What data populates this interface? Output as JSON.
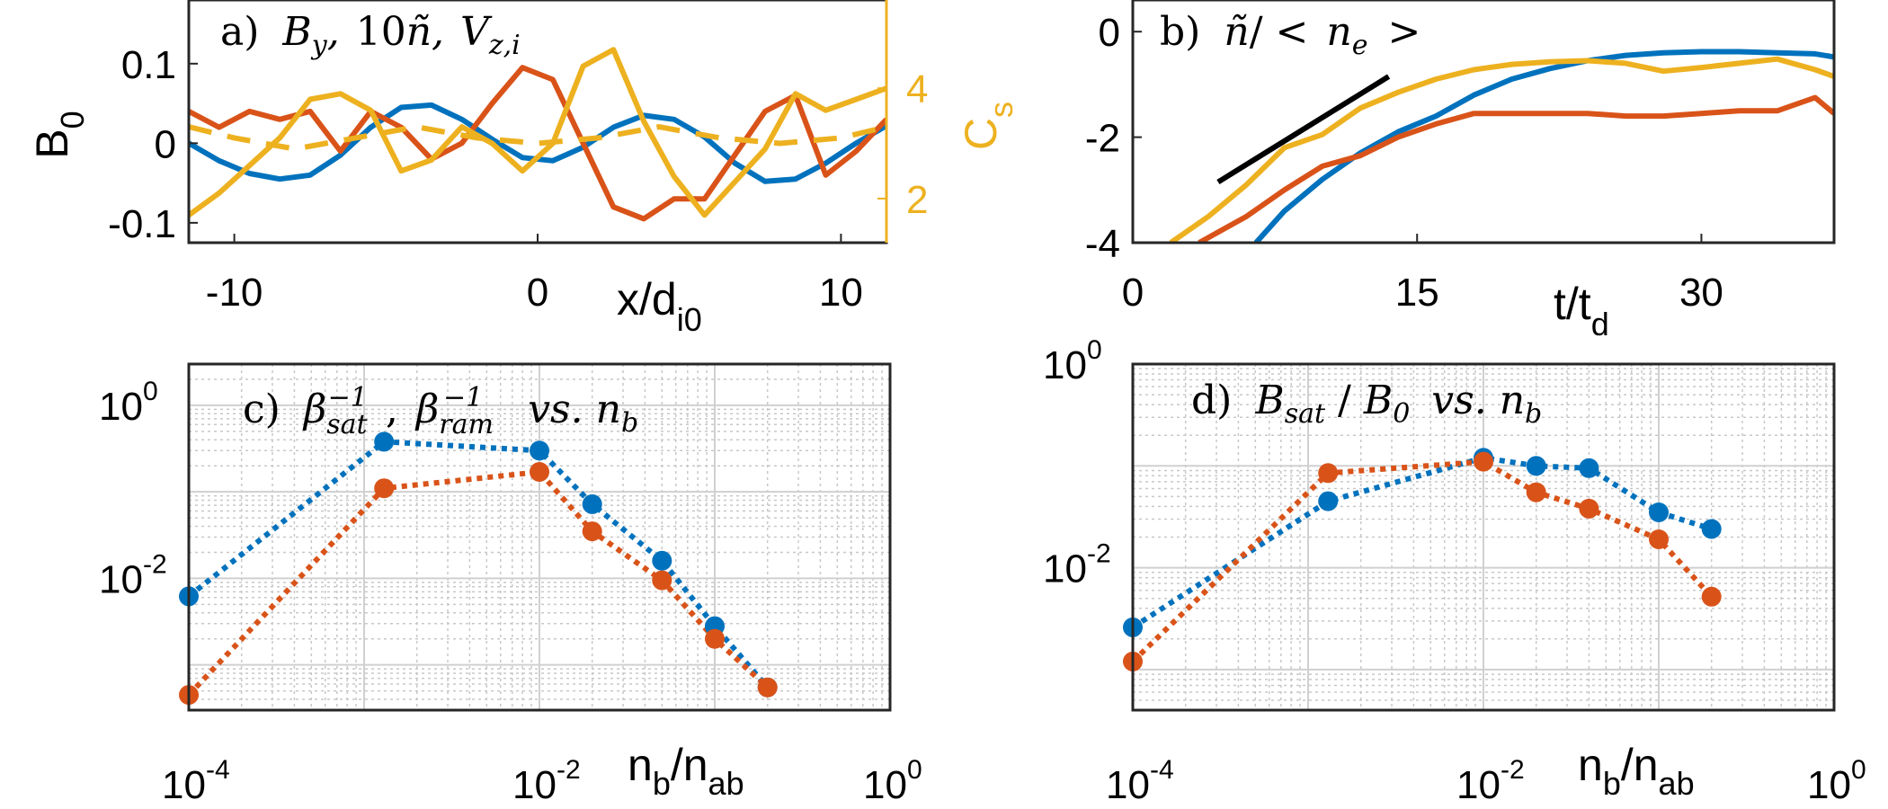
{
  "figure": {
    "colors": {
      "blue": "#0072bd",
      "orange": "#d95319",
      "yellow": "#edb120",
      "black": "#000000"
    }
  },
  "chart_data": [
    {
      "panel": "a",
      "type": "line",
      "title_tokens": [
        "a)",
        "B",
        "y",
        ",",
        "10",
        "ñ",
        ",",
        "V",
        "z,i"
      ],
      "xlabel_main": "x/d",
      "xlabel_sub": "i0",
      "ylabel_main": "B",
      "ylabel_sub": "0",
      "ylabel_right_main": "C",
      "ylabel_right_sub": "s",
      "xlim": [
        -11.5,
        11.5
      ],
      "ylim": [
        -0.125,
        0.18
      ],
      "y2lim": [
        1.2,
        5.6
      ],
      "xticks": [
        -10,
        0,
        10
      ],
      "xtick_labels": [
        "-10",
        "0",
        "10"
      ],
      "yticks": [
        -0.1,
        0,
        0.1
      ],
      "ytick_labels": [
        "-0.1",
        "0",
        "0.1"
      ],
      "y2ticks": [
        2,
        4
      ],
      "y2tick_labels": [
        "2",
        "4"
      ],
      "series": [
        {
          "color": "blue",
          "style": "solid",
          "x": [
            -11.5,
            -10.5,
            -9.5,
            -8.5,
            -7.5,
            -6.5,
            -5.5,
            -4.5,
            -3.5,
            -2.5,
            -1.5,
            -0.5,
            0.5,
            1.5,
            2.5,
            3.5,
            4.5,
            5.5,
            6.5,
            7.5,
            8.5,
            9.5,
            10.5,
            11.5
          ],
          "y": [
            0.0,
            -0.022,
            -0.038,
            -0.045,
            -0.04,
            -0.015,
            0.02,
            0.045,
            0.048,
            0.03,
            0.005,
            -0.018,
            -0.022,
            -0.005,
            0.02,
            0.035,
            0.03,
            0.008,
            -0.025,
            -0.048,
            -0.045,
            -0.025,
            0.0,
            0.022
          ]
        },
        {
          "color": "orange",
          "style": "solid",
          "x": [
            -11.5,
            -10.5,
            -9.5,
            -8.5,
            -7.5,
            -6.5,
            -5.5,
            -4.5,
            -3.5,
            -2.5,
            -1.5,
            -0.5,
            0.5,
            1.5,
            2.5,
            3.5,
            4.5,
            5.5,
            6.5,
            7.5,
            8.5,
            9.5,
            10.5,
            11.5
          ],
          "y": [
            0.04,
            0.02,
            0.04,
            0.03,
            0.04,
            -0.01,
            0.04,
            0.02,
            -0.02,
            0.0,
            0.05,
            0.095,
            0.08,
            0.0,
            -0.08,
            -0.095,
            -0.07,
            -0.07,
            -0.015,
            0.04,
            0.06,
            -0.04,
            -0.01,
            0.03
          ]
        },
        {
          "color": "yellow",
          "style": "solid",
          "axis": "right",
          "x": [
            -11.5,
            -10.5,
            -9.5,
            -8.5,
            -7.5,
            -6.5,
            -5.5,
            -4.5,
            -3.5,
            -2.5,
            -1.5,
            -0.5,
            0.5,
            1.5,
            2.5,
            3.5,
            4.5,
            5.5,
            6.5,
            7.5,
            8.5,
            9.5,
            10.5,
            11.5
          ],
          "y": [
            1.7,
            2.1,
            2.6,
            3.1,
            3.8,
            3.9,
            3.6,
            2.5,
            2.7,
            3.3,
            3.0,
            2.5,
            3.0,
            4.4,
            4.7,
            3.4,
            2.4,
            1.7,
            2.3,
            2.9,
            3.9,
            3.6,
            3.8,
            4.0
          ]
        },
        {
          "color": "yellow",
          "style": "dashed",
          "axis": "right",
          "x": [
            -11.5,
            -10,
            -8,
            -6,
            -4,
            -2,
            0,
            2,
            4,
            6,
            8,
            10,
            11.5
          ],
          "y": [
            3.3,
            3.1,
            2.9,
            3.1,
            3.3,
            3.1,
            3.0,
            3.1,
            3.3,
            3.1,
            3.0,
            3.1,
            3.3
          ]
        }
      ]
    },
    {
      "panel": "b",
      "type": "line",
      "title_tokens": [
        "b)",
        "ñ",
        "/ <",
        "n",
        "e",
        ">"
      ],
      "xlabel_main": "t/t",
      "xlabel_sub": "d",
      "xlim": [
        0,
        37
      ],
      "ylim": [
        -4,
        0.6
      ],
      "xticks": [
        0,
        15,
        30
      ],
      "xtick_labels": [
        "0",
        "15",
        "30"
      ],
      "yticks": [
        -4,
        -2,
        0
      ],
      "ytick_labels": [
        "-4",
        "-2",
        "0"
      ],
      "series": [
        {
          "color": "black",
          "style": "solid",
          "x": [
            4.5,
            13.5
          ],
          "y": [
            -2.85,
            -0.85
          ]
        },
        {
          "color": "blue",
          "style": "solid",
          "x": [
            6.5,
            8,
            10,
            12,
            14,
            16,
            18,
            20,
            22,
            24,
            26,
            28,
            30,
            32,
            34,
            36,
            37
          ],
          "y": [
            -4.0,
            -3.4,
            -2.8,
            -2.3,
            -1.9,
            -1.6,
            -1.2,
            -0.9,
            -0.7,
            -0.55,
            -0.45,
            -0.4,
            -0.38,
            -0.38,
            -0.4,
            -0.42,
            -0.48
          ]
        },
        {
          "color": "orange",
          "style": "solid",
          "x": [
            3.5,
            6,
            8,
            10,
            12,
            14,
            16,
            18,
            20,
            22,
            24,
            26,
            28,
            30,
            32,
            34,
            36,
            37
          ],
          "y": [
            -4.0,
            -3.5,
            -3.0,
            -2.55,
            -2.35,
            -2.0,
            -1.75,
            -1.55,
            -1.55,
            -1.55,
            -1.55,
            -1.6,
            -1.6,
            -1.55,
            -1.5,
            -1.5,
            -1.25,
            -1.55
          ]
        },
        {
          "color": "yellow",
          "style": "solid",
          "x": [
            2,
            4,
            6,
            8,
            10,
            12,
            14,
            16,
            18,
            20,
            22,
            24,
            26,
            28,
            30,
            32,
            34,
            36,
            37
          ],
          "y": [
            -4.0,
            -3.5,
            -2.9,
            -2.2,
            -1.95,
            -1.45,
            -1.15,
            -0.9,
            -0.72,
            -0.62,
            -0.57,
            -0.55,
            -0.6,
            -0.75,
            -0.68,
            -0.6,
            -0.52,
            -0.72,
            -0.85
          ]
        }
      ]
    },
    {
      "panel": "c",
      "type": "line",
      "title_tokens": [
        "c)",
        "β",
        "sat",
        "−1",
        ",",
        "β",
        "ram",
        "−1",
        "vs. n",
        "b"
      ],
      "xlabel_main": "n",
      "xlabel_sub": "b",
      "xlabel_mid": "/n",
      "xlabel_sub2": "ab",
      "xscale": "log",
      "yscale": "log",
      "xlim": [
        0.0001,
        1
      ],
      "ylim": [
        0.0003,
        3
      ],
      "xtick_labels": [
        [
          "10",
          "-4"
        ],
        [
          "10",
          "-2"
        ],
        [
          "10",
          "0"
        ]
      ],
      "ytick_labels": [
        [
          "10",
          "-2"
        ],
        [
          "10",
          "0"
        ]
      ],
      "grid": true,
      "series": [
        {
          "color": "blue",
          "style": "dotted",
          "x": [
            0.0001,
            0.0013,
            0.01,
            0.02,
            0.05,
            0.1,
            0.2
          ],
          "y": [
            0.0062,
            0.38,
            0.3,
            0.072,
            0.016,
            0.0028,
            0.00055
          ]
        },
        {
          "color": "orange",
          "style": "dotted",
          "x": [
            0.0001,
            0.0013,
            0.01,
            0.02,
            0.05,
            0.1,
            0.2
          ],
          "y": [
            0.00045,
            0.11,
            0.17,
            0.035,
            0.0095,
            0.002,
            0.00055
          ]
        }
      ]
    },
    {
      "panel": "d",
      "type": "line",
      "title_tokens": [
        "d)",
        "B",
        "sat",
        "/",
        "B",
        "0",
        "vs. n",
        "b"
      ],
      "xlabel_main": "n",
      "xlabel_sub": "b",
      "xlabel_mid": "/n",
      "xlabel_sub2": "ab",
      "xscale": "log",
      "yscale": "log",
      "xlim": [
        0.0001,
        1
      ],
      "ylim": [
        0.0004,
        1
      ],
      "xtick_labels": [
        [
          "10",
          "-4"
        ],
        [
          "10",
          "-2"
        ],
        [
          "10",
          "0"
        ]
      ],
      "ytick_labels": [
        [
          "10",
          "-2"
        ],
        [
          "10",
          "0"
        ]
      ],
      "grid": true,
      "series": [
        {
          "color": "blue",
          "style": "dotted",
          "x": [
            0.0001,
            0.0013,
            0.01,
            0.02,
            0.04,
            0.1,
            0.2
          ],
          "y": [
            0.0026,
            0.045,
            0.12,
            0.1,
            0.095,
            0.035,
            0.024
          ]
        },
        {
          "color": "orange",
          "style": "dotted",
          "x": [
            0.0001,
            0.0013,
            0.01,
            0.02,
            0.04,
            0.1,
            0.2
          ],
          "y": [
            0.0012,
            0.085,
            0.11,
            0.055,
            0.038,
            0.019,
            0.0052
          ]
        }
      ]
    }
  ]
}
